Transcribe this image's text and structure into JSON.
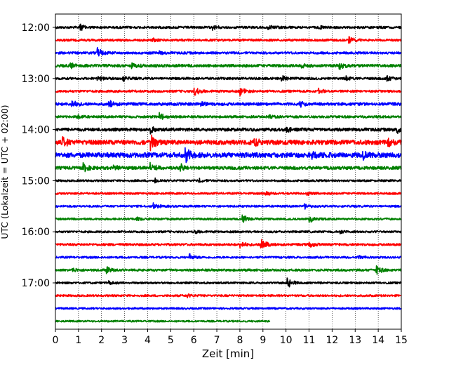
{
  "chart_data": {
    "type": "line",
    "title": "",
    "xlabel": "Zeit  [min]",
    "ylabel": "UTC (Lokalzeit = UTC + 02:00)",
    "xlim": [
      0,
      15
    ],
    "x_ticks": [
      0,
      1,
      2,
      3,
      4,
      5,
      6,
      7,
      8,
      9,
      10,
      11,
      12,
      13,
      14,
      15
    ],
    "y_tick_labels": [
      "12:00",
      "13:00",
      "14:00",
      "15:00",
      "16:00",
      "17:00"
    ],
    "y_tick_rows": [
      0,
      4,
      8,
      12,
      16,
      20
    ],
    "grid": "x dotted",
    "trace_interval_min": 15,
    "series_colors": [
      "#000000",
      "#ff0000",
      "#0000ff",
      "#008000"
    ],
    "rows": [
      {
        "start": "12:00",
        "color": "#000000",
        "amp": 1.6,
        "end_min": 15,
        "events": [
          [
            1.05,
            5
          ],
          [
            6.8,
            4
          ],
          [
            9.2,
            3
          ],
          [
            11.4,
            2.5
          ]
        ]
      },
      {
        "start": "12:15",
        "color": "#ff0000",
        "amp": 1.6,
        "end_min": 15,
        "events": [
          [
            12.7,
            7
          ],
          [
            4.2,
            2.5
          ]
        ]
      },
      {
        "start": "12:30",
        "color": "#0000ff",
        "amp": 1.6,
        "end_min": 15,
        "events": [
          [
            1.8,
            9
          ],
          [
            4.5,
            2
          ]
        ]
      },
      {
        "start": "12:45",
        "color": "#008000",
        "amp": 2.0,
        "end_min": 15,
        "events": [
          [
            0.6,
            5
          ],
          [
            3.3,
            4
          ],
          [
            12.3,
            5
          ],
          [
            10.6,
            3
          ]
        ]
      },
      {
        "start": "13:00",
        "color": "#000000",
        "amp": 1.6,
        "end_min": 15,
        "events": [
          [
            1.8,
            5
          ],
          [
            2.9,
            4
          ],
          [
            9.8,
            5
          ],
          [
            12.5,
            5
          ],
          [
            14.3,
            5
          ]
        ]
      },
      {
        "start": "13:15",
        "color": "#ff0000",
        "amp": 1.6,
        "end_min": 15,
        "events": [
          [
            6.0,
            8
          ],
          [
            8.0,
            6
          ],
          [
            11.4,
            4
          ]
        ]
      },
      {
        "start": "13:30",
        "color": "#0000ff",
        "amp": 2.0,
        "end_min": 15,
        "events": [
          [
            0.7,
            6
          ],
          [
            2.3,
            5
          ],
          [
            6.3,
            4
          ],
          [
            10.6,
            4
          ]
        ]
      },
      {
        "start": "13:45",
        "color": "#008000",
        "amp": 1.6,
        "end_min": 15,
        "events": [
          [
            0.9,
            4
          ],
          [
            4.5,
            8
          ],
          [
            9.2,
            3
          ]
        ]
      },
      {
        "start": "14:00",
        "color": "#000000",
        "amp": 2.2,
        "end_min": 15,
        "events": [
          [
            4.1,
            6
          ],
          [
            10.0,
            4
          ],
          [
            14.8,
            5
          ]
        ]
      },
      {
        "start": "14:15",
        "color": "#ff0000",
        "amp": 3.2,
        "end_min": 15,
        "events": [
          [
            0.3,
            7
          ],
          [
            4.1,
            13
          ],
          [
            8.6,
            6
          ],
          [
            14.4,
            9
          ]
        ]
      },
      {
        "start": "14:30",
        "color": "#0000ff",
        "amp": 3.4,
        "end_min": 15,
        "events": [
          [
            5.6,
            12
          ],
          [
            11.1,
            10
          ],
          [
            13.3,
            7
          ]
        ]
      },
      {
        "start": "14:45",
        "color": "#008000",
        "amp": 2.2,
        "end_min": 15,
        "events": [
          [
            1.2,
            7
          ],
          [
            2.5,
            6
          ],
          [
            4.1,
            9
          ],
          [
            5.4,
            6
          ]
        ]
      },
      {
        "start": "15:00",
        "color": "#000000",
        "amp": 1.4,
        "end_min": 15,
        "events": [
          [
            4.3,
            4
          ],
          [
            6.2,
            3
          ]
        ]
      },
      {
        "start": "15:15",
        "color": "#ff0000",
        "amp": 1.4,
        "end_min": 15,
        "events": [
          [
            9.1,
            4
          ],
          [
            10.9,
            3
          ]
        ]
      },
      {
        "start": "15:30",
        "color": "#0000ff",
        "amp": 1.4,
        "end_min": 15,
        "events": [
          [
            4.2,
            5
          ],
          [
            10.8,
            4
          ]
        ]
      },
      {
        "start": "15:45",
        "color": "#008000",
        "amp": 1.4,
        "end_min": 15,
        "events": [
          [
            8.1,
            7
          ],
          [
            11.0,
            6
          ],
          [
            3.5,
            3
          ]
        ]
      },
      {
        "start": "16:00",
        "color": "#000000",
        "amp": 1.4,
        "end_min": 15,
        "events": [
          [
            6.0,
            3
          ],
          [
            12.3,
            3
          ]
        ]
      },
      {
        "start": "16:15",
        "color": "#ff0000",
        "amp": 1.6,
        "end_min": 15,
        "events": [
          [
            8.9,
            10
          ],
          [
            8.0,
            6
          ],
          [
            11.0,
            5
          ]
        ]
      },
      {
        "start": "16:30",
        "color": "#0000ff",
        "amp": 1.4,
        "end_min": 15,
        "events": [
          [
            5.8,
            5
          ],
          [
            13.1,
            3
          ]
        ]
      },
      {
        "start": "16:45",
        "color": "#008000",
        "amp": 1.6,
        "end_min": 15,
        "events": [
          [
            0.7,
            4
          ],
          [
            2.2,
            6
          ],
          [
            13.9,
            7
          ]
        ]
      },
      {
        "start": "17:00",
        "color": "#000000",
        "amp": 1.4,
        "end_min": 15,
        "events": [
          [
            10.05,
            9
          ],
          [
            2.3,
            3
          ]
        ]
      },
      {
        "start": "17:15",
        "color": "#ff0000",
        "amp": 1.4,
        "end_min": 15,
        "events": [
          [
            5.7,
            3
          ]
        ]
      },
      {
        "start": "17:30",
        "color": "#0000ff",
        "amp": 1.3,
        "end_min": 15,
        "events": []
      },
      {
        "start": "17:45",
        "color": "#008000",
        "amp": 1.2,
        "end_min": 9.3,
        "events": []
      }
    ]
  }
}
